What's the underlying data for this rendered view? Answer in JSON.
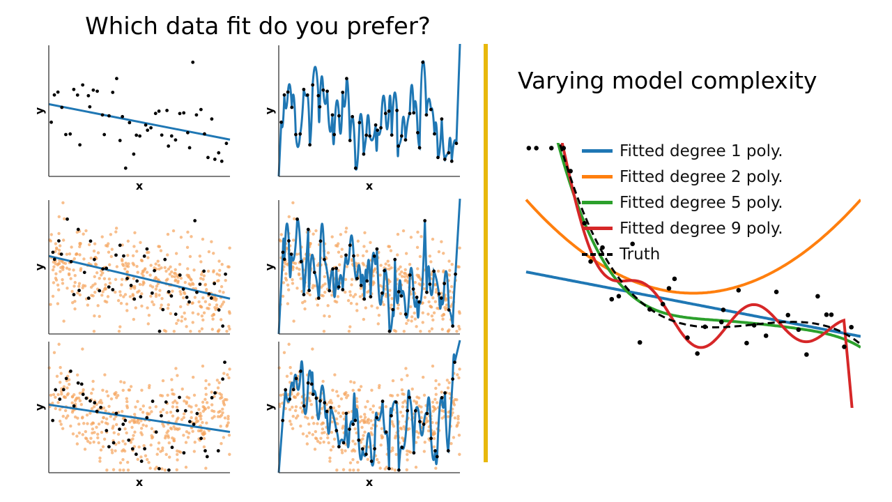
{
  "slide": {
    "left_title": "Which data fit do you prefer?",
    "right_title": "Varying model complexity",
    "divider_color": "#e8b80c"
  },
  "colors": {
    "blue": "#1f77b4",
    "orange": "#ff7f0e",
    "green": "#2ca02c",
    "red": "#d62728",
    "truth": "#000000",
    "noise": "#f5a45d"
  },
  "chart_data": [
    {
      "type": "scatter",
      "grid": "left-column",
      "row": 1,
      "xlabel": "x",
      "ylabel": "y",
      "fit": "degree 1 line",
      "point_count": 50,
      "extra_points": false
    },
    {
      "type": "scatter",
      "grid": "right-column",
      "row": 1,
      "xlabel": "x",
      "ylabel": "y",
      "fit": "high-degree interpolation",
      "point_count": 50,
      "extra_points": false
    },
    {
      "type": "scatter",
      "grid": "left-column",
      "row": 2,
      "xlabel": "",
      "ylabel": "y",
      "fit": "degree 1 line",
      "point_count": 50,
      "extra_points": true
    },
    {
      "type": "scatter",
      "grid": "right-column",
      "row": 2,
      "xlabel": "",
      "ylabel": "y",
      "fit": "high-degree interpolation",
      "point_count": 50,
      "extra_points": true
    },
    {
      "type": "scatter",
      "grid": "left-column",
      "row": 3,
      "xlabel": "x",
      "ylabel": "y",
      "fit": "degree 1 line",
      "point_count": 50,
      "extra_points": true
    },
    {
      "type": "scatter",
      "grid": "right-column",
      "row": 3,
      "xlabel": "x",
      "ylabel": "y",
      "fit": "high-degree interpolation",
      "point_count": 50,
      "extra_points": true
    },
    {
      "type": "line",
      "grid": "right",
      "xlabel": "",
      "ylabel": "",
      "legend_position": "top-center",
      "series": [
        {
          "name": "Fitted degree 1 poly.",
          "color": "#1f77b4",
          "style": "solid"
        },
        {
          "name": "Fitted degree 2 poly.",
          "color": "#ff7f0e",
          "style": "solid"
        },
        {
          "name": "Fitted degree 5 poly.",
          "color": "#2ca02c",
          "style": "solid"
        },
        {
          "name": "Fitted degree 9 poly.",
          "color": "#d62728",
          "style": "solid"
        },
        {
          "name": "Truth",
          "color": "#000000",
          "style": "dashed"
        }
      ],
      "point_count": 34
    }
  ]
}
